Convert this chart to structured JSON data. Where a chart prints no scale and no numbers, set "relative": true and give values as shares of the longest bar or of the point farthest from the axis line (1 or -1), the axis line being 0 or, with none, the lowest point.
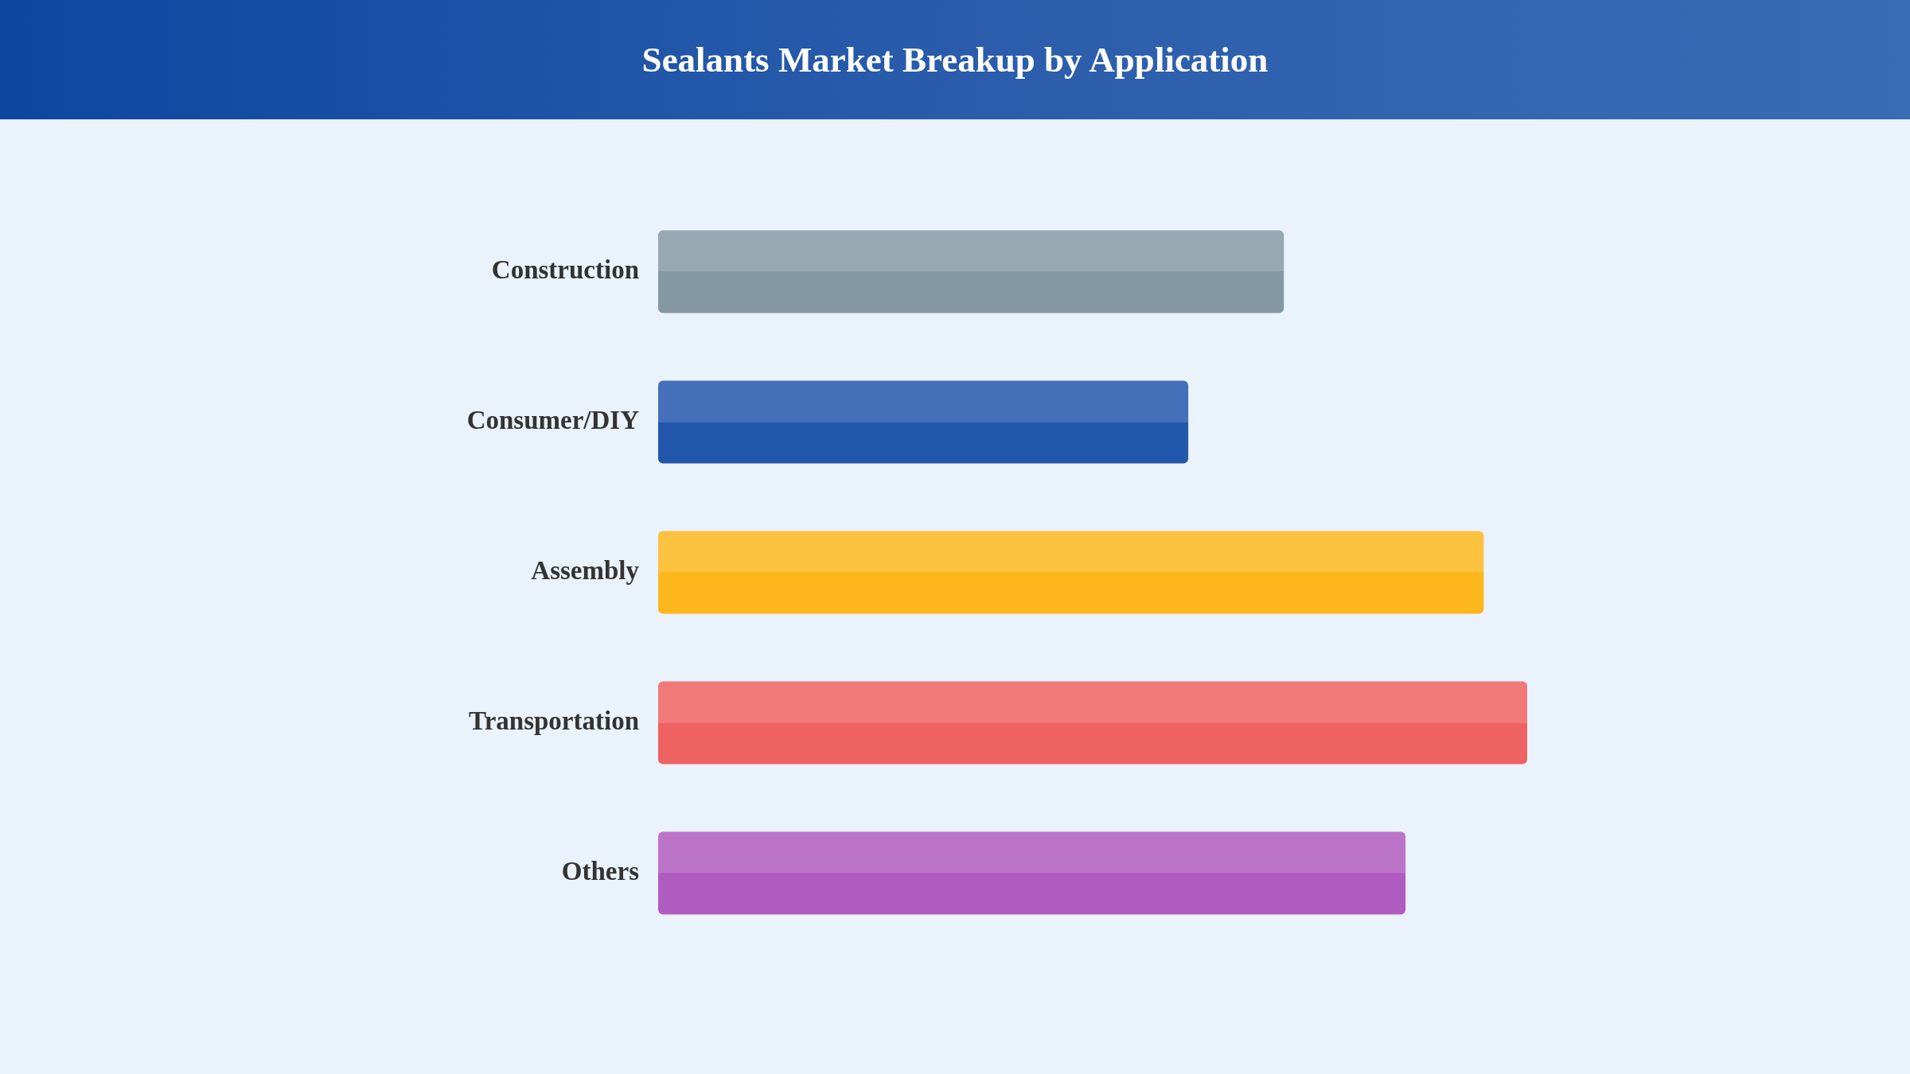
{
  "chart_data": {
    "type": "bar",
    "title": "Sealants Market Breakup by Application",
    "orientation": "horizontal",
    "relative": true,
    "categories": [
      "Construction",
      "Consumer/DIY",
      "Assembly",
      "Transportation",
      "Others"
    ],
    "values": [
      0.72,
      0.61,
      0.95,
      1,
      0.86
    ],
    "colors": [
      "#8499a3",
      "#2257ab",
      "#fdb71d",
      "#ee6261",
      "#b05bc0"
    ]
  }
}
